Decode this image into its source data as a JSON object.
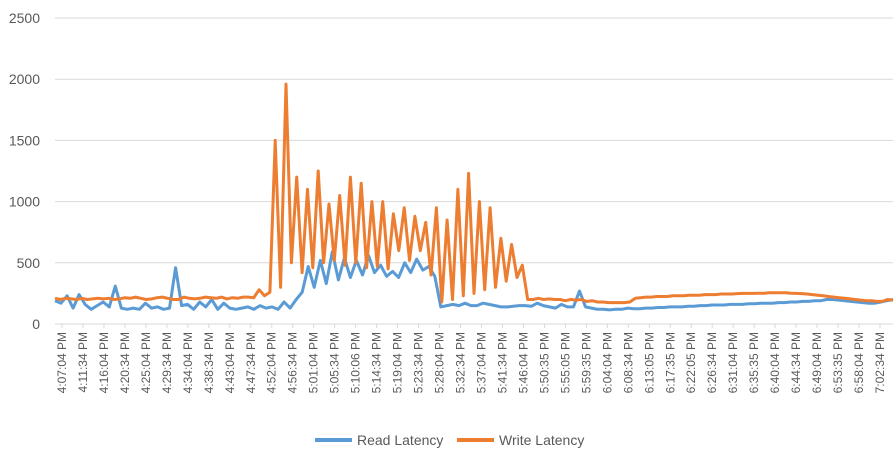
{
  "colors": {
    "read": "#5B9BD5",
    "write": "#ED7D31",
    "grid": "#D9D9D9",
    "text": "#595959"
  },
  "chart_data": {
    "type": "line",
    "title": "",
    "xlabel": "",
    "ylabel": "",
    "ylim": [
      0,
      2500
    ],
    "yticks": [
      0,
      500,
      1000,
      1500,
      2000,
      2500
    ],
    "grid": true,
    "legend_position": "bottom",
    "x_tick_labels": [
      "4:07:04 PM",
      "4:11:34 PM",
      "4:16:04 PM",
      "4:20:34 PM",
      "4:25:04 PM",
      "4:29:34 PM",
      "4:34:04 PM",
      "4:38:34 PM",
      "4:43:04 PM",
      "4:47:34 PM",
      "4:52:04 PM",
      "4:56:34 PM",
      "5:01:04 PM",
      "5:05:34 PM",
      "5:10:06 PM",
      "5:14:34 PM",
      "5:19:04 PM",
      "5:23:34 PM",
      "5:28:04 PM",
      "5:32:34 PM",
      "5:37:04 PM",
      "5:41:34 PM",
      "5:46:04 PM",
      "5:50:35 PM",
      "5:55:05 PM",
      "5:59:35 PM",
      "6:04:04 PM",
      "6:08:34 PM",
      "6:13:05 PM",
      "6:17:35 PM",
      "6:22:05 PM",
      "6:26:34 PM",
      "6:31:04 PM",
      "6:35:35 PM",
      "6:40:04 PM",
      "6:44:34 PM",
      "6:49:04 PM",
      "6:53:35 PM",
      "6:58:04 PM",
      "7:02:34 PM"
    ],
    "series": [
      {
        "name": "Read Latency",
        "color": "#5B9BD5",
        "values": [
          190,
          170,
          230,
          130,
          240,
          160,
          120,
          150,
          180,
          140,
          310,
          130,
          120,
          130,
          120,
          170,
          130,
          140,
          120,
          130,
          460,
          150,
          160,
          120,
          180,
          140,
          200,
          120,
          170,
          130,
          120,
          130,
          140,
          120,
          150,
          130,
          140,
          120,
          180,
          130,
          200,
          260,
          470,
          300,
          520,
          330,
          590,
          360,
          540,
          380,
          520,
          400,
          560,
          420,
          480,
          390,
          430,
          380,
          500,
          420,
          530,
          440,
          470,
          390,
          140,
          150,
          160,
          150,
          170,
          150,
          150,
          170,
          160,
          150,
          140,
          140,
          145,
          150,
          150,
          145,
          170,
          150,
          140,
          130,
          160,
          140,
          140,
          270,
          140,
          130,
          120,
          120,
          115,
          120,
          120,
          130,
          125,
          125,
          130,
          130,
          135,
          135,
          140,
          140,
          140,
          145,
          145,
          150,
          150,
          155,
          155,
          155,
          160,
          160,
          160,
          165,
          165,
          170,
          170,
          170,
          175,
          175,
          180,
          180,
          185,
          185,
          190,
          190,
          200,
          200,
          195,
          190,
          185,
          180,
          175,
          170,
          170,
          180,
          190,
          200
        ]
      },
      {
        "name": "Write Latency",
        "color": "#ED7D31",
        "values": [
          210,
          200,
          210,
          205,
          200,
          210,
          200,
          205,
          210,
          205,
          210,
          200,
          205,
          215,
          210,
          220,
          210,
          200,
          205,
          215,
          220,
          210,
          200,
          200,
          220,
          210,
          205,
          210,
          220,
          215,
          210,
          220,
          205,
          215,
          210,
          220,
          220,
          215,
          280,
          230,
          260,
          1500,
          300,
          1960,
          500,
          1200,
          420,
          1100,
          460,
          1250,
          500,
          980,
          520,
          1050,
          480,
          1200,
          500,
          1150,
          460,
          1000,
          470,
          1000,
          450,
          900,
          600,
          950,
          520,
          880,
          600,
          830,
          400,
          950,
          180,
          850,
          200,
          1100,
          230,
          1230,
          250,
          1000,
          280,
          950,
          300,
          700,
          350,
          650,
          380,
          480,
          200,
          200,
          210,
          200,
          205,
          200,
          200,
          190,
          200,
          195,
          200,
          185,
          190,
          180,
          180,
          175,
          175,
          175,
          175,
          180,
          210,
          215,
          220,
          220,
          225,
          225,
          225,
          230,
          230,
          230,
          235,
          235,
          235,
          240,
          240,
          240,
          245,
          245,
          245,
          248,
          250,
          250,
          250,
          252,
          252,
          255,
          255,
          255,
          255,
          252,
          250,
          248,
          245,
          240,
          235,
          230,
          225,
          220,
          215,
          210,
          205,
          200,
          195,
          190,
          190,
          185,
          185,
          200,
          195
        ]
      }
    ]
  }
}
